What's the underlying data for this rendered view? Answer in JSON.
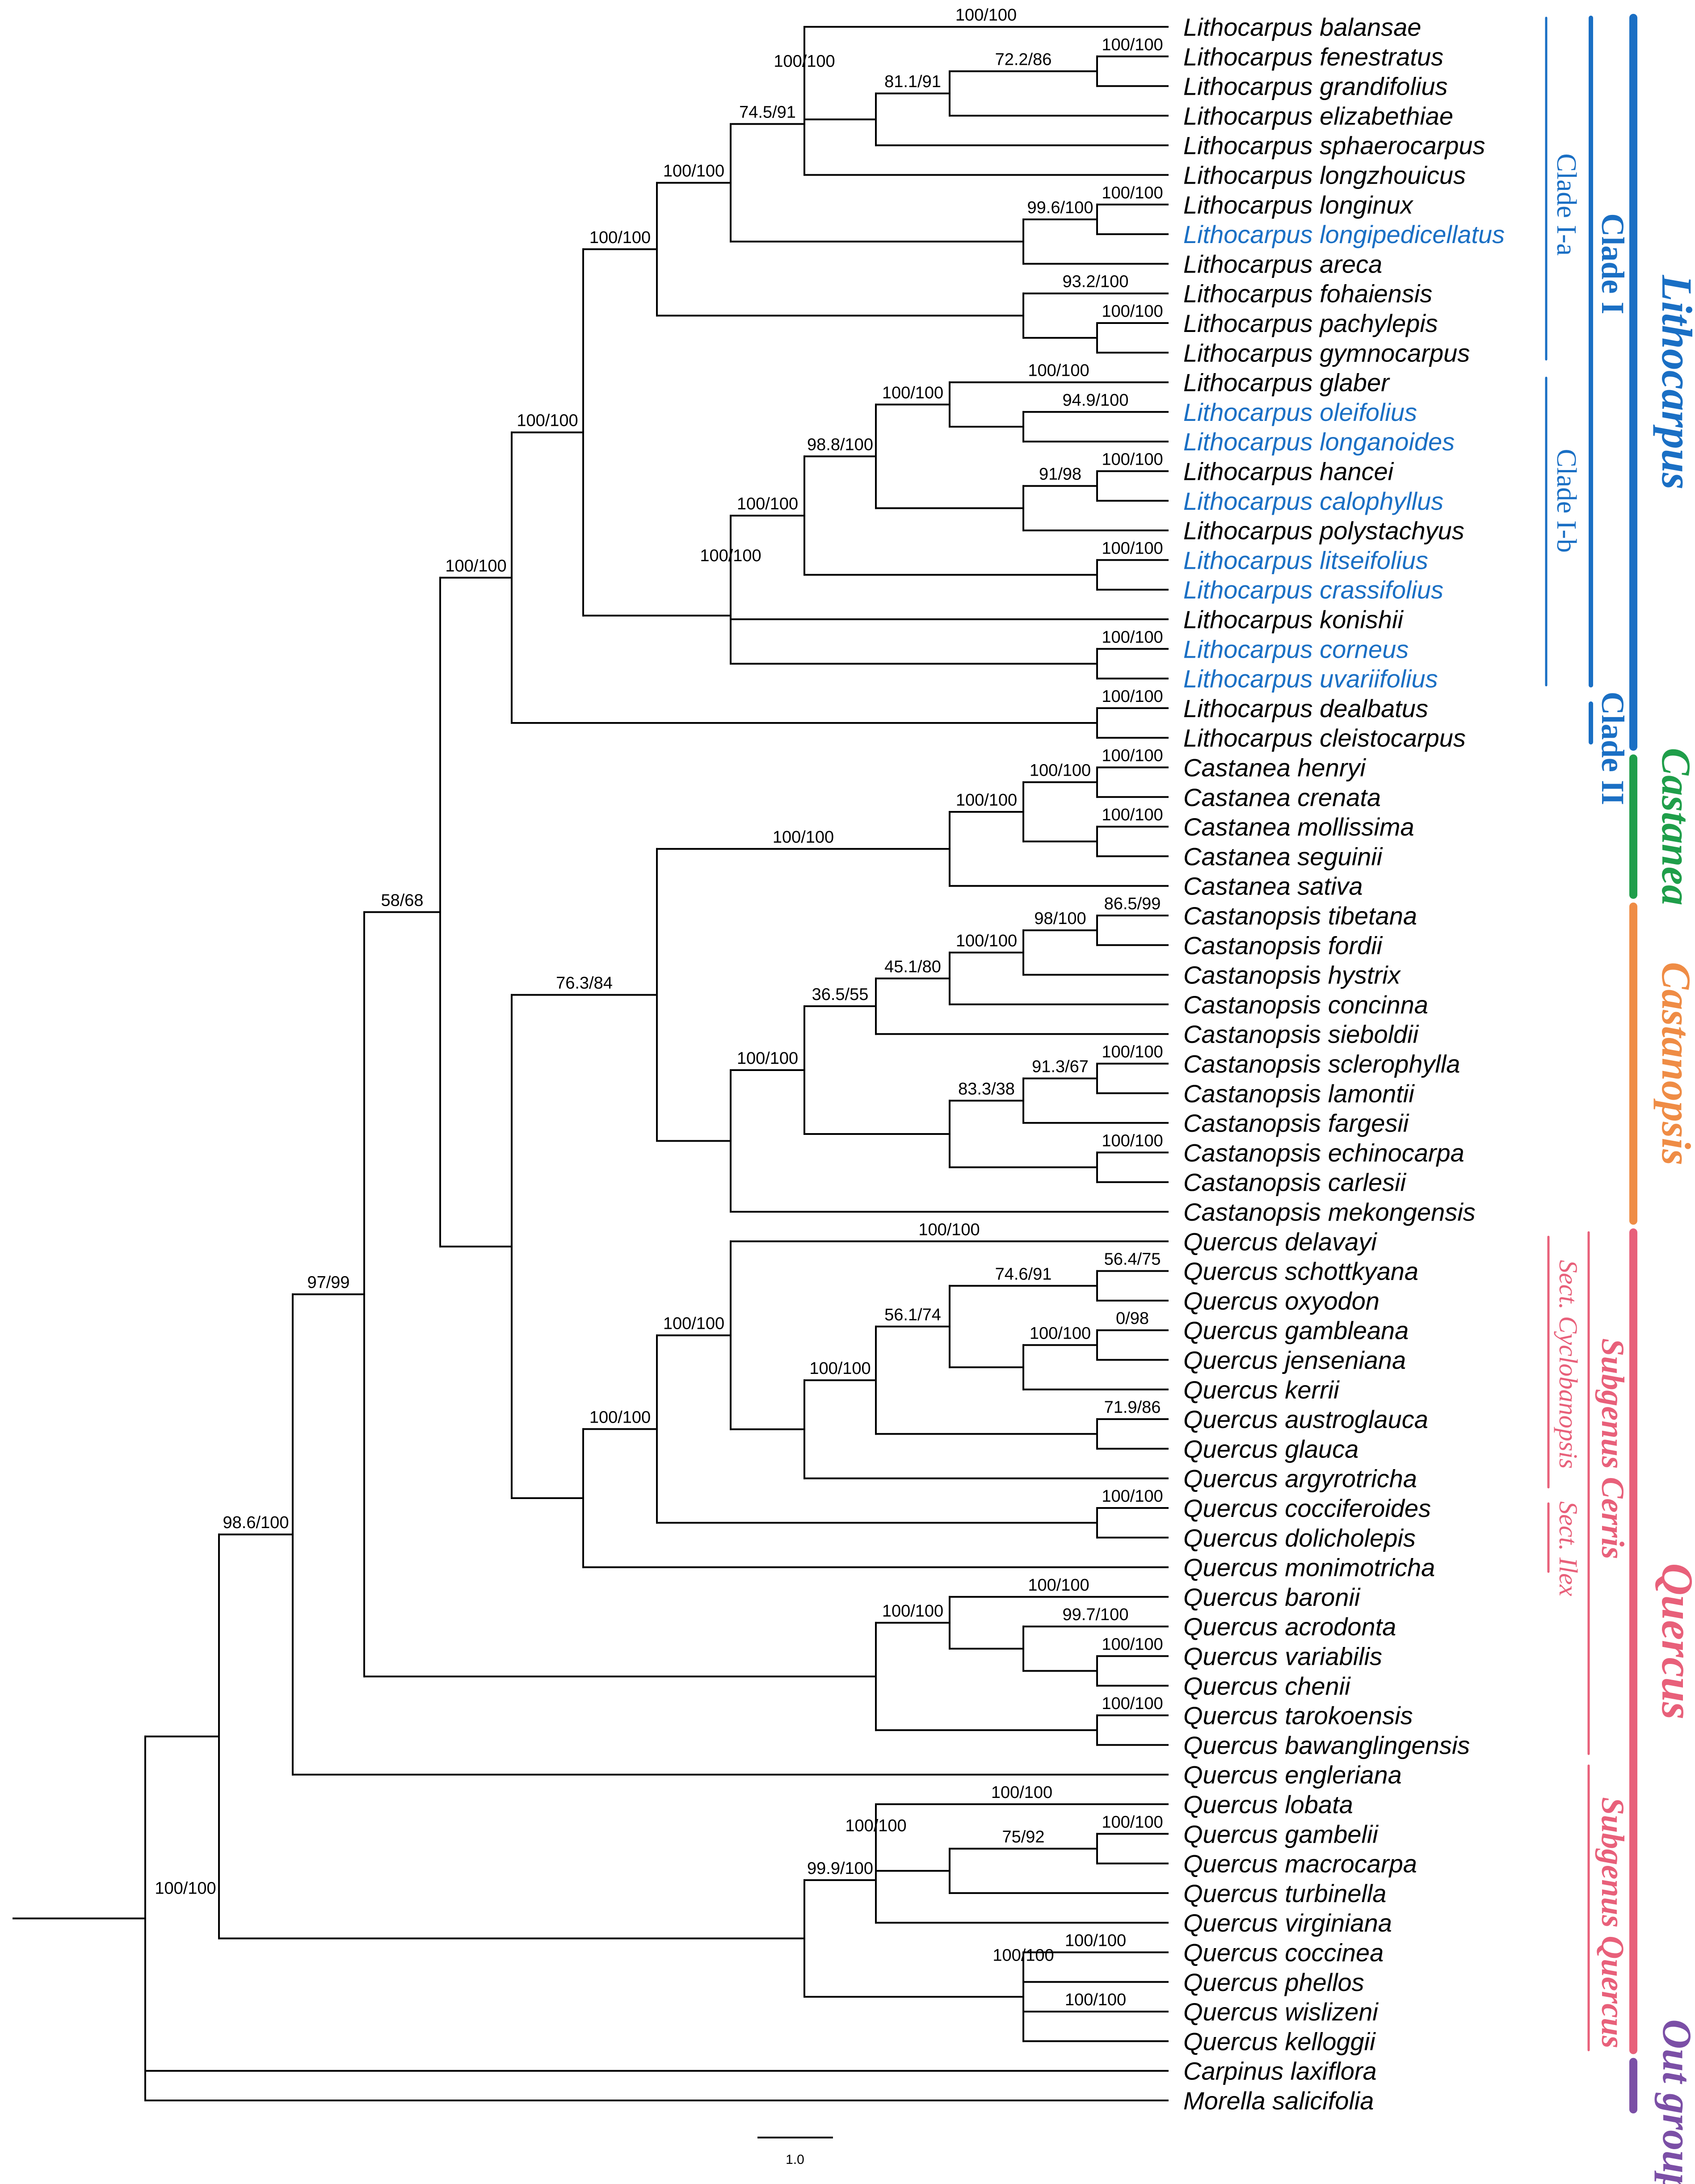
{
  "colors": {
    "black": "#000000",
    "lithocarpus": "#1a6fc4",
    "castanea": "#1f9e4a",
    "castanopsis": "#ef8c45",
    "quercus": "#e8607a",
    "outgroup": "#7b4fa6"
  },
  "tree": {
    "taxa": [
      {
        "name": "Lithocarpus balansae",
        "color": "black"
      },
      {
        "name": "Lithocarpus fenestratus",
        "color": "black"
      },
      {
        "name": "Lithocarpus grandifolius",
        "color": "black"
      },
      {
        "name": "Lithocarpus  elizabethiae",
        "color": "black"
      },
      {
        "name": "Lithocarpus  sphaerocarpus",
        "color": "black"
      },
      {
        "name": "Lithocarpus longzhouicus",
        "color": "black"
      },
      {
        "name": "Lithocarpus longinux",
        "color": "black"
      },
      {
        "name": "Lithocarpus longipedicellatus",
        "color": "lithocarpus"
      },
      {
        "name": "Lithocarpus  areca",
        "color": "black"
      },
      {
        "name": "Lithocarpus fohaiensis",
        "color": "black"
      },
      {
        "name": "Lithocarpus pachylepis",
        "color": "black"
      },
      {
        "name": "Lithocarpus gymnocarpus",
        "color": "black"
      },
      {
        "name": "Lithocarpus glaber",
        "color": "black"
      },
      {
        "name": "Lithocarpus oleifolius",
        "color": "lithocarpus"
      },
      {
        "name": "Lithocarpus longanoides",
        "color": "lithocarpus"
      },
      {
        "name": "Lithocarpus hancei",
        "color": "black"
      },
      {
        "name": "Lithocarpus calophyllus",
        "color": "lithocarpus"
      },
      {
        "name": "Lithocarpus polystachyus",
        "color": "black"
      },
      {
        "name": "Lithocarpus litseifolius",
        "color": "lithocarpus"
      },
      {
        "name": "Lithocarpus crassifolius",
        "color": "lithocarpus"
      },
      {
        "name": "Lithocarpus konishii",
        "color": "black"
      },
      {
        "name": "Lithocarpus corneus",
        "color": "lithocarpus"
      },
      {
        "name": "Lithocarpus uvariifolius",
        "color": "lithocarpus"
      },
      {
        "name": "Lithocarpus dealbatus",
        "color": "black"
      },
      {
        "name": "Lithocarpus cleistocarpus",
        "color": "black"
      },
      {
        "name": "Castanea henryi",
        "color": "black"
      },
      {
        "name": "Castanea crenata",
        "color": "black"
      },
      {
        "name": "Castanea mollissima",
        "color": "black"
      },
      {
        "name": "Castanea seguinii",
        "color": "black"
      },
      {
        "name": "Castanea sativa",
        "color": "black"
      },
      {
        "name": "Castanopsis tibetana",
        "color": "black"
      },
      {
        "name": "Castanopsis fordii",
        "color": "black"
      },
      {
        "name": "Castanopsis hystrix",
        "color": "black"
      },
      {
        "name": "Castanopsis concinna",
        "color": "black"
      },
      {
        "name": "Castanopsis sieboldii",
        "color": "black"
      },
      {
        "name": "Castanopsis sclerophylla",
        "color": "black"
      },
      {
        "name": "Castanopsis lamontii",
        "color": "black"
      },
      {
        "name": "Castanopsis fargesii",
        "color": "black"
      },
      {
        "name": "Castanopsis echinocarpa",
        "color": "black"
      },
      {
        "name": "Castanopsis carlesii",
        "color": "black"
      },
      {
        "name": "Castanopsis mekongensis",
        "color": "black"
      },
      {
        "name": "Quercus delavayi",
        "color": "black"
      },
      {
        "name": "Quercus schottkyana",
        "color": "black"
      },
      {
        "name": "Quercus oxyodon",
        "color": "black"
      },
      {
        "name": "Quercus gambleana",
        "color": "black"
      },
      {
        "name": "Quercus jenseniana",
        "color": "black"
      },
      {
        "name": "Quercus kerrii",
        "color": "black"
      },
      {
        "name": "Quercus austroglauca",
        "color": "black"
      },
      {
        "name": "Quercus glauca",
        "color": "black"
      },
      {
        "name": "Quercus argyrotricha",
        "color": "black"
      },
      {
        "name": "Quercus cocciferoides",
        "color": "black"
      },
      {
        "name": "Quercus dolicholepis",
        "color": "black"
      },
      {
        "name": "Quercus monimotricha",
        "color": "black"
      },
      {
        "name": "Quercus baronii",
        "color": "black"
      },
      {
        "name": "Quercus acrodonta",
        "color": "black"
      },
      {
        "name": "Quercus variabilis",
        "color": "black"
      },
      {
        "name": "Quercus chenii",
        "color": "black"
      },
      {
        "name": "Quercus tarokoensis",
        "color": "black"
      },
      {
        "name": "Quercus bawanglingensis",
        "color": "black"
      },
      {
        "name": "Quercus engleriana",
        "color": "black"
      },
      {
        "name": "Quercus lobata",
        "color": "black"
      },
      {
        "name": "Quercus gambelii",
        "color": "black"
      },
      {
        "name": "Quercus macrocarpa",
        "color": "black"
      },
      {
        "name": "Quercus turbinella",
        "color": "black"
      },
      {
        "name": "Quercus virginiana",
        "color": "black"
      },
      {
        "name": "Quercus coccinea",
        "color": "black"
      },
      {
        "name": "Quercus phellos",
        "color": "black"
      },
      {
        "name": "Quercus wislizeni",
        "color": "black"
      },
      {
        "name": "Quercus kelloggii",
        "color": "black"
      },
      {
        "name": "Carpinus laxiflora",
        "color": "black"
      },
      {
        "name": "Morella salicifolia",
        "color": "black"
      }
    ],
    "nodes": [
      {
        "id": "n_fen_gra",
        "children": [
          1,
          2
        ],
        "support": "100/100"
      },
      {
        "id": "n_fgr_eli",
        "children": [
          "n_fen_gra",
          3
        ],
        "support": "72.2/86"
      },
      {
        "id": "n_fge_sph",
        "children": [
          "n_fgr_eli",
          4
        ],
        "support": "81.1/91"
      },
      {
        "id": "n_bal",
        "children": [
          0,
          "n_fge_sph"
        ],
        "support": "100/100"
      },
      {
        "id": "n_bal_lzh",
        "children": [
          "n_bal",
          5
        ],
        "support": "100/100"
      },
      {
        "id": "n_lnx_lpd",
        "children": [
          6,
          7
        ],
        "support": "100/100"
      },
      {
        "id": "n_lnx_are",
        "children": [
          "n_lnx_lpd",
          8
        ],
        "support": "99.6/100"
      },
      {
        "id": "n_Ia_inner",
        "children": [
          "n_bal_lzh",
          "n_lnx_are"
        ],
        "support": "74.5/91"
      },
      {
        "id": "n_pac_gym",
        "children": [
          10,
          11
        ],
        "support": "100/100"
      },
      {
        "id": "n_foh",
        "children": [
          9,
          "n_pac_gym"
        ],
        "support": "93.2/100"
      },
      {
        "id": "n_Ia",
        "children": [
          "n_Ia_inner",
          "n_foh"
        ],
        "support": "100/100"
      },
      {
        "id": "n_ole_lga",
        "children": [
          13,
          14
        ],
        "support": "94.9/100"
      },
      {
        "id": "n_gla",
        "children": [
          12,
          "n_ole_lga"
        ],
        "support": "100/100"
      },
      {
        "id": "n_han_cal",
        "children": [
          15,
          16
        ],
        "support": "100/100"
      },
      {
        "id": "n_han_pol",
        "children": [
          "n_han_cal",
          17
        ],
        "support": "91/98"
      },
      {
        "id": "n_gla_pol",
        "children": [
          "n_gla",
          "n_han_pol"
        ],
        "support": "100/100"
      },
      {
        "id": "n_lit_cra",
        "children": [
          18,
          19
        ],
        "support": "100/100"
      },
      {
        "id": "n_gla_cra",
        "children": [
          "n_gla_pol",
          "n_lit_cra"
        ],
        "support": "98.8/100"
      },
      {
        "id": "n_gla_kon",
        "children": [
          "n_gla_cra",
          20
        ],
        "support": "100/100"
      },
      {
        "id": "n_cor_uva",
        "children": [
          21,
          22
        ],
        "support": "100/100"
      },
      {
        "id": "n_Ib",
        "children": [
          "n_gla_kon",
          "n_cor_uva"
        ],
        "support": "100/100"
      },
      {
        "id": "n_I",
        "children": [
          "n_Ia",
          "n_Ib"
        ],
        "support": "100/100"
      },
      {
        "id": "n_II",
        "children": [
          23,
          24
        ],
        "support": "100/100"
      },
      {
        "id": "n_Litho",
        "children": [
          "n_I",
          "n_II"
        ],
        "support": "100/100"
      },
      {
        "id": "n_hen_cre",
        "children": [
          25,
          26
        ],
        "support": "100/100"
      },
      {
        "id": "n_mol_seg",
        "children": [
          27,
          28
        ],
        "support": "100/100"
      },
      {
        "id": "n_hen_seg",
        "children": [
          "n_hen_cre",
          "n_mol_seg"
        ],
        "support": "100/100"
      },
      {
        "id": "n_Castanea",
        "children": [
          "n_hen_seg",
          29
        ],
        "support": "100/100"
      },
      {
        "id": "n_tib_for",
        "children": [
          30,
          31
        ],
        "support": "86.5/99"
      },
      {
        "id": "n_tib_hys",
        "children": [
          "n_tib_for",
          32
        ],
        "support": "98/100"
      },
      {
        "id": "n_tib_con",
        "children": [
          "n_tib_hys",
          33
        ],
        "support": "100/100"
      },
      {
        "id": "n_tib_sie",
        "children": [
          "n_tib_con",
          34
        ],
        "support": "45.1/80"
      },
      {
        "id": "n_scl_lam",
        "children": [
          35,
          36
        ],
        "support": "100/100"
      },
      {
        "id": "n_scl_far",
        "children": [
          "n_scl_lam",
          37
        ],
        "support": "91.3/67"
      },
      {
        "id": "n_ech_car",
        "children": [
          38,
          39
        ],
        "support": "100/100"
      },
      {
        "id": "n_scl_car",
        "children": [
          "n_scl_far",
          "n_ech_car"
        ],
        "support": "83.3/38"
      },
      {
        "id": "n_tib_car",
        "children": [
          "n_tib_sie",
          "n_scl_car"
        ],
        "support": "36.5/55"
      },
      {
        "id": "n_Castanopsis",
        "children": [
          "n_tib_car",
          40
        ],
        "support": "100/100"
      },
      {
        "id": "n_CC",
        "children": [
          "n_Castanea",
          "n_Castanopsis"
        ],
        "support": "100/100"
      },
      {
        "id": "n_sch_oxy",
        "children": [
          42,
          43
        ],
        "support": "56.4/75"
      },
      {
        "id": "n_gam_jen",
        "children": [
          44,
          45
        ],
        "support": "0/98"
      },
      {
        "id": "n_gam_ker",
        "children": [
          "n_gam_jen",
          46
        ],
        "support": "100/100"
      },
      {
        "id": "n_sch_ker",
        "children": [
          "n_sch_oxy",
          "n_gam_ker"
        ],
        "support": "74.6/91"
      },
      {
        "id": "n_aus_gla",
        "children": [
          47,
          48
        ],
        "support": "71.9/86"
      },
      {
        "id": "n_sch_gla",
        "children": [
          "n_sch_ker",
          "n_aus_gla"
        ],
        "support": "56.1/74"
      },
      {
        "id": "n_sch_arg",
        "children": [
          "n_sch_gla",
          49
        ],
        "support": "100/100"
      },
      {
        "id": "n_del_arg",
        "children": [
          41,
          "n_sch_arg"
        ],
        "support": "100/100"
      },
      {
        "id": "n_coc_dol",
        "children": [
          50,
          51
        ],
        "support": "100/100"
      },
      {
        "id": "n_del_dol",
        "children": [
          "n_del_arg",
          "n_coc_dol"
        ],
        "support": "100/100"
      },
      {
        "id": "n_del_mon",
        "children": [
          "n_del_dol",
          52
        ],
        "support": "100/100"
      },
      {
        "id": "n_CCQ",
        "children": [
          "n_CC",
          "n_del_mon"
        ],
        "support": "76.3/84"
      },
      {
        "id": "n_LCCQ",
        "children": [
          "n_Litho",
          "n_CCQ"
        ],
        "support": "100/100"
      },
      {
        "id": "n_var_che",
        "children": [
          55,
          56
        ],
        "support": "100/100"
      },
      {
        "id": "n_acr_che",
        "children": [
          54,
          "n_var_che"
        ],
        "support": "99.7/100"
      },
      {
        "id": "n_bar_che",
        "children": [
          53,
          "n_acr_che"
        ],
        "support": "100/100"
      },
      {
        "id": "n_tar_baw",
        "children": [
          57,
          58
        ],
        "support": "100/100"
      },
      {
        "id": "n_bar_baw",
        "children": [
          "n_bar_che",
          "n_tar_baw"
        ],
        "support": "100/100"
      },
      {
        "id": "n_L_bar",
        "children": [
          "n_LCCQ",
          "n_bar_baw"
        ],
        "support": "58/68"
      },
      {
        "id": "n_L_eng",
        "children": [
          "n_L_bar",
          59
        ],
        "support": "97/99"
      },
      {
        "id": "n_gab_mac",
        "children": [
          61,
          62
        ],
        "support": "100/100"
      },
      {
        "id": "n_gab_tur",
        "children": [
          "n_gab_mac",
          63
        ],
        "support": "75/92"
      },
      {
        "id": "n_lob_tur",
        "children": [
          60,
          "n_gab_tur"
        ],
        "support": "100/100"
      },
      {
        "id": "n_lob_vir",
        "children": [
          "n_lob_tur",
          64
        ],
        "support": "100/100"
      },
      {
        "id": "n_coc_phe",
        "children": [
          65,
          66
        ],
        "support": "100/100"
      },
      {
        "id": "n_wis_kel",
        "children": [
          67,
          68
        ],
        "support": "100/100"
      },
      {
        "id": "n_coc_kel",
        "children": [
          "n_coc_phe",
          "n_wis_kel"
        ],
        "support": "100/100"
      },
      {
        "id": "n_SubQ",
        "children": [
          "n_lob_vir",
          "n_coc_kel"
        ],
        "support": "99.9/100"
      },
      {
        "id": "n_ingroup",
        "children": [
          "n_L_eng",
          "n_SubQ"
        ],
        "support": "98.6/100"
      },
      {
        "id": "n_root",
        "children": [
          "n_ingroup",
          69,
          70
        ],
        "support": "100/100"
      }
    ]
  },
  "groups": [
    {
      "label": "Lithocarpus",
      "color": "lithocarpus",
      "from": 0,
      "to": 24
    },
    {
      "label": "Castanea",
      "color": "castanea",
      "from": 25,
      "to": 29
    },
    {
      "label": "Castanopsis",
      "color": "castanopsis",
      "from": 30,
      "to": 40
    },
    {
      "label": "Quercus",
      "color": "quercus",
      "from": 41,
      "to": 68
    },
    {
      "label": "Out group",
      "color": "outgroup",
      "from": 69,
      "to": 70
    }
  ],
  "clades": [
    {
      "label": "Clade I",
      "color": "lithocarpus",
      "from": 0,
      "to": 22
    },
    {
      "label": "Clade II",
      "color": "lithocarpus",
      "from": 23,
      "to": 24
    },
    {
      "label": "Clade I-a",
      "color": "lithocarpus",
      "from": 0,
      "to": 11
    },
    {
      "label": "Clade I-b",
      "color": "lithocarpus",
      "from": 12,
      "to": 22
    }
  ],
  "subgenera": [
    {
      "label": "Subgenus Cerris",
      "color": "quercus",
      "from": 41,
      "to": 58
    },
    {
      "label": "Subgenus Quercus",
      "color": "quercus",
      "from": 59,
      "to": 68
    }
  ],
  "sections": [
    {
      "label": "Sect. Cyclobanopsis",
      "color": "quercus",
      "from": 41,
      "to": 49
    },
    {
      "label": "Sect. Ilex",
      "color": "quercus",
      "from": 50,
      "to": 52
    }
  ],
  "scale": {
    "label": "1.0"
  }
}
